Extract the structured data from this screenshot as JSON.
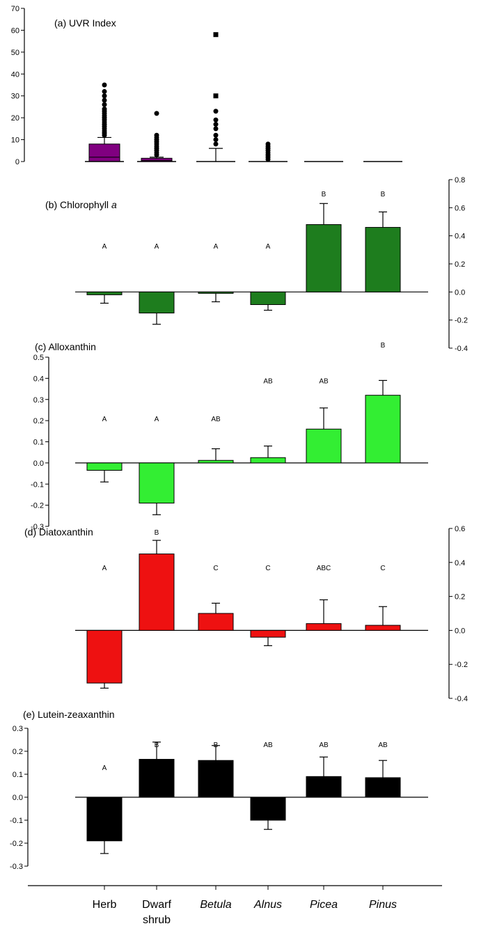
{
  "categories": [
    "Herb",
    "Dwarf shrub",
    "Betula",
    "Alnus",
    "Picea",
    "Pinus"
  ],
  "category_lines": [
    [
      "Herb"
    ],
    [
      "Dwarf",
      "shrub"
    ],
    [
      "Betula"
    ],
    [
      "Alnus"
    ],
    [
      "Picea"
    ],
    [
      "Pinus"
    ]
  ],
  "category_italic": [
    false,
    false,
    true,
    true,
    true,
    true
  ],
  "chart_data": [
    {
      "type": "box",
      "id": "a",
      "title": "(a) UVR Index",
      "title_italic": "",
      "yaxis_side": "left",
      "ylim": [
        0,
        70
      ],
      "yticks": [
        0,
        10,
        20,
        30,
        40,
        50,
        60,
        70
      ],
      "ytick_labels": [
        "0",
        "10",
        "20",
        "30",
        "40",
        "50",
        "60",
        "70"
      ],
      "color": "#800080",
      "boxes": [
        {
          "q1": 0,
          "median": 2,
          "q3": 8,
          "whisker_low": 0,
          "whisker_high": 11,
          "outliers": [
            12,
            13,
            14,
            15,
            16,
            17,
            18,
            19,
            20,
            21,
            22,
            23,
            24,
            26,
            28,
            30,
            32,
            35
          ]
        },
        {
          "q1": 0,
          "median": 0.5,
          "q3": 1.5,
          "whisker_low": 0,
          "whisker_high": 2,
          "outliers": [
            3,
            4,
            5,
            6,
            7,
            8,
            9,
            10,
            11,
            12,
            22
          ]
        },
        {
          "q1": 0,
          "median": 0,
          "q3": 0,
          "whisker_low": 0,
          "whisker_high": 6,
          "outliers": [
            8,
            10,
            12,
            15,
            17,
            19,
            23,
            30,
            58
          ]
        },
        {
          "q1": 0,
          "median": 0,
          "q3": 0,
          "whisker_low": 0,
          "whisker_high": 0,
          "outliers": [
            1,
            2,
            3,
            4,
            5,
            6,
            7,
            8
          ]
        },
        {
          "q1": 0,
          "median": 0,
          "q3": 0,
          "whisker_low": 0,
          "whisker_high": 0,
          "outliers": []
        },
        {
          "q1": 0,
          "median": 0,
          "q3": 0,
          "whisker_low": 0,
          "whisker_high": 0,
          "outliers": []
        }
      ]
    },
    {
      "type": "bar",
      "id": "b",
      "title": "(b) Chlorophyll ",
      "title_italic": "a",
      "yaxis_side": "right",
      "ylim": [
        -0.4,
        0.8
      ],
      "yticks": [
        -0.4,
        -0.2,
        0.0,
        0.2,
        0.4,
        0.6,
        0.8
      ],
      "ytick_labels": [
        "-0.4",
        "-0.2",
        "0.0",
        "0.2",
        "0.4",
        "0.6",
        "0.8"
      ],
      "color": "#1e7d1e",
      "values": [
        -0.02,
        -0.15,
        -0.01,
        -0.09,
        0.48,
        0.46
      ],
      "errors": [
        0.06,
        0.08,
        0.06,
        0.04,
        0.15,
        0.11
      ],
      "letters": [
        "A",
        "A",
        "A",
        "A",
        "B",
        "B"
      ],
      "letter_values": [
        0.33,
        0.33,
        0.33,
        0.33,
        0.7,
        0.7
      ]
    },
    {
      "type": "bar",
      "id": "c",
      "title": "(c) Alloxanthin",
      "title_italic": "",
      "yaxis_side": "left",
      "ylim": [
        -0.3,
        0.5
      ],
      "yticks": [
        -0.3,
        -0.2,
        -0.1,
        0.0,
        0.1,
        0.2,
        0.3,
        0.4,
        0.5
      ],
      "ytick_labels": [
        "-0.3",
        "-0.2",
        "-0.1",
        "0.0",
        "0.1",
        "0.2",
        "0.3",
        "0.4",
        "0.5"
      ],
      "color": "#33ee33",
      "values": [
        -0.035,
        -0.19,
        0.012,
        0.025,
        0.16,
        0.32
      ],
      "errors": [
        0.055,
        0.055,
        0.055,
        0.055,
        0.1,
        0.07
      ],
      "letters": [
        "A",
        "A",
        "AB",
        "AB",
        "AB",
        "B"
      ],
      "letter_values": [
        0.21,
        0.21,
        0.21,
        0.39,
        0.39,
        0.56
      ]
    },
    {
      "type": "bar",
      "id": "d",
      "title": "(d) Diatoxanthin",
      "title_italic": "",
      "yaxis_side": "right",
      "ylim": [
        -0.4,
        0.6
      ],
      "yticks": [
        -0.4,
        -0.2,
        0.0,
        0.2,
        0.4,
        0.6
      ],
      "ytick_labels": [
        "-0.4",
        "-0.2",
        "0.0",
        "0.2",
        "0.4",
        "0.6"
      ],
      "color": "#ee1111",
      "values": [
        -0.31,
        0.45,
        0.1,
        -0.04,
        0.04,
        0.03
      ],
      "errors": [
        0.03,
        0.08,
        0.06,
        0.05,
        0.14,
        0.11
      ],
      "letters": [
        "A",
        "B",
        "C",
        "C",
        "ABC",
        "C"
      ],
      "letter_values": [
        0.37,
        0.58,
        0.37,
        0.37,
        0.37,
        0.37
      ]
    },
    {
      "type": "bar",
      "id": "e",
      "title": "(e) Lutein-zeaxanthin",
      "title_italic": "",
      "yaxis_side": "left",
      "ylim": [
        -0.3,
        0.3
      ],
      "yticks": [
        -0.3,
        -0.2,
        -0.1,
        0.0,
        0.1,
        0.2,
        0.3
      ],
      "ytick_labels": [
        "-0.3",
        "-0.2",
        "-0.1",
        "0.0",
        "0.1",
        "0.2",
        "0.3"
      ],
      "color": "#000000",
      "values": [
        -0.19,
        0.165,
        0.16,
        -0.1,
        0.09,
        0.085
      ],
      "errors": [
        0.055,
        0.075,
        0.065,
        0.04,
        0.085,
        0.075
      ],
      "letters": [
        "A",
        "B",
        "B",
        "AB",
        "AB",
        "AB"
      ],
      "letter_values": [
        0.13,
        0.23,
        0.23,
        0.23,
        0.23,
        0.23
      ]
    }
  ]
}
